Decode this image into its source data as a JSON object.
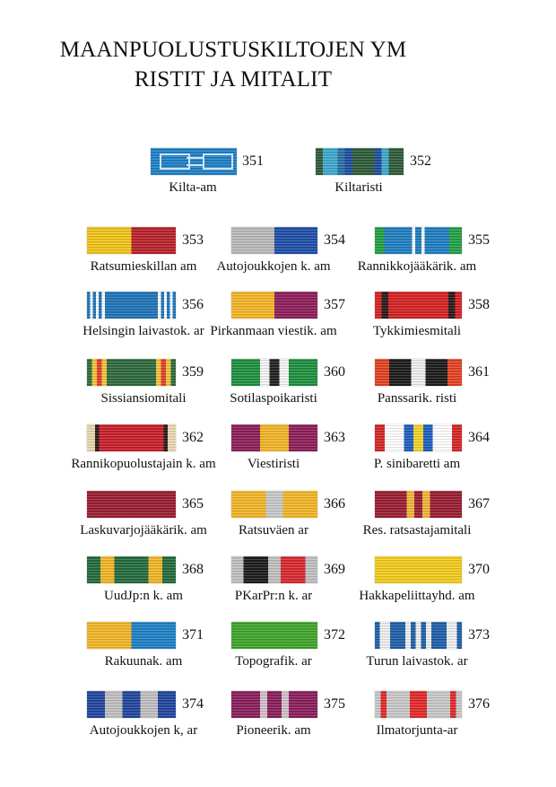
{
  "title_lines": [
    "MAANPUOLUSTUSKILTOJEN YM",
    "RISTIT JA MITALIT"
  ],
  "ribbons": [
    {
      "number": "351",
      "name": "Kilta-am",
      "stripes": [
        [
          "#1f80c6",
          1
        ]
      ],
      "pattern": "white-cross-outline"
    },
    {
      "number": "352",
      "name": "Kiltaristi",
      "stripes": [
        [
          "#2f5c3a",
          1
        ],
        [
          "#3ea8cc",
          2
        ],
        [
          "#2a6fa0",
          1
        ],
        [
          "#1f4d9e",
          1
        ],
        [
          "#2f5c3a",
          3
        ],
        [
          "#1f4d9e",
          1
        ],
        [
          "#3ea8cc",
          1
        ],
        [
          "#2f5c3a",
          2
        ]
      ]
    },
    {
      "number": "353",
      "name": "Ratsumieskillan am",
      "stripes": [
        [
          "#f0c419",
          1
        ],
        [
          "#b8232a",
          1
        ]
      ]
    },
    {
      "number": "354",
      "name": "Autojoukkojen k. am",
      "stripes": [
        [
          "#b9b9b9",
          1
        ],
        [
          "#1f4fa8",
          1
        ]
      ]
    },
    {
      "number": "355",
      "name": "Rannikkojääkärik. am",
      "stripes": [
        [
          "#23a046",
          3
        ],
        [
          "#1f7ec0",
          9
        ],
        [
          "#ffffff",
          1
        ],
        [
          "#1f7ec0",
          2
        ],
        [
          "#ffffff",
          1
        ],
        [
          "#1f7ec0",
          8
        ],
        [
          "#23a046",
          4
        ]
      ]
    },
    {
      "number": "356",
      "name": "Helsingin laivastok. ar",
      "stripes": [
        [
          "#1f74b8",
          1
        ],
        [
          "#ffffff",
          1
        ],
        [
          "#1f74b8",
          1
        ],
        [
          "#ffffff",
          1
        ],
        [
          "#1f74b8",
          1
        ],
        [
          "#ffffff",
          1
        ],
        [
          "#1f74b8",
          18
        ],
        [
          "#ffffff",
          1
        ],
        [
          "#1f74b8",
          1
        ],
        [
          "#ffffff",
          1
        ],
        [
          "#1f74b8",
          1
        ],
        [
          "#ffffff",
          1
        ],
        [
          "#1f74b8",
          1
        ]
      ]
    },
    {
      "number": "357",
      "name": "Pirkanmaan viestik. am",
      "stripes": [
        [
          "#f2b527",
          1
        ],
        [
          "#8e1f5a",
          1
        ]
      ]
    },
    {
      "number": "358",
      "name": "Tykkimiesmitali",
      "stripes": [
        [
          "#d42222",
          2
        ],
        [
          "#2a1a1a",
          2
        ],
        [
          "#d42222",
          18
        ],
        [
          "#2a1a1a",
          2
        ],
        [
          "#d42222",
          2
        ]
      ]
    },
    {
      "number": "359",
      "name": "Sissiansiomitali",
      "stripes": [
        [
          "#2f6a3e",
          1
        ],
        [
          "#f2c23a",
          1
        ],
        [
          "#e0402a",
          1
        ],
        [
          "#f2c23a",
          1
        ],
        [
          "#2f6a3e",
          10
        ],
        [
          "#f2c23a",
          1
        ],
        [
          "#e0402a",
          1
        ],
        [
          "#f2c23a",
          1
        ],
        [
          "#2f6a3e",
          1
        ]
      ]
    },
    {
      "number": "360",
      "name": "Sotilaspoikaristi",
      "stripes": [
        [
          "#1f9040",
          3
        ],
        [
          "#f4f4f4",
          1
        ],
        [
          "#222222",
          1
        ],
        [
          "#f4f4f4",
          1
        ],
        [
          "#1f9040",
          3
        ]
      ]
    },
    {
      "number": "361",
      "name": "Panssarik. risti",
      "stripes": [
        [
          "#e24222",
          2
        ],
        [
          "#1c1c1c",
          3
        ],
        [
          "#eeeeee",
          2
        ],
        [
          "#1c1c1c",
          3
        ],
        [
          "#e24222",
          2
        ]
      ]
    },
    {
      "number": "362",
      "name": "Rannikopuolustajain k. am",
      "stripes": [
        [
          "#e8d7b0",
          2
        ],
        [
          "#2a1a1a",
          1
        ],
        [
          "#c8202a",
          16
        ],
        [
          "#2a1a1a",
          1
        ],
        [
          "#e8d7b0",
          2
        ]
      ]
    },
    {
      "number": "363",
      "name": "Viestiristi",
      "stripes": [
        [
          "#8e1f5a",
          1
        ],
        [
          "#f2b527",
          1
        ],
        [
          "#8e1f5a",
          1
        ]
      ]
    },
    {
      "number": "364",
      "name": "P. sinibaretti am",
      "stripes": [
        [
          "#d42626",
          1
        ],
        [
          "#ffffff",
          2
        ],
        [
          "#1f5fc0",
          1
        ],
        [
          "#f2d22a",
          1
        ],
        [
          "#1f5fc0",
          1
        ],
        [
          "#ffffff",
          2
        ],
        [
          "#d42626",
          1
        ]
      ]
    },
    {
      "number": "365",
      "name": "Laskuvarjojääkärik. am",
      "stripes": [
        [
          "#9b1d33",
          1
        ]
      ]
    },
    {
      "number": "366",
      "name": "Ratsuväen ar",
      "stripes": [
        [
          "#f2b527",
          2
        ],
        [
          "#c8c8c8",
          1
        ],
        [
          "#f2b527",
          2
        ]
      ]
    },
    {
      "number": "367",
      "name": "Res. ratsastajamitali",
      "stripes": [
        [
          "#9b1d33",
          4
        ],
        [
          "#f0b43a",
          1
        ],
        [
          "#9b1d33",
          1
        ],
        [
          "#f0b43a",
          1
        ],
        [
          "#9b1d33",
          4
        ]
      ]
    },
    {
      "number": "368",
      "name": "UudJp:n k. am",
      "stripes": [
        [
          "#236b3e",
          2
        ],
        [
          "#f2b527",
          2
        ],
        [
          "#236b3e",
          5
        ],
        [
          "#f2b527",
          2
        ],
        [
          "#236b3e",
          2
        ]
      ]
    },
    {
      "number": "369",
      "name": "PKarPr:n k. ar",
      "stripes": [
        [
          "#c0c0c0",
          1
        ],
        [
          "#1c1c1c",
          2
        ],
        [
          "#c0c0c0",
          1
        ],
        [
          "#d82a30",
          2
        ],
        [
          "#c0c0c0",
          1
        ]
      ]
    },
    {
      "number": "370",
      "name": "Hakkapeliittayhd. am",
      "stripes": [
        [
          "#f2cc1c",
          1
        ]
      ]
    },
    {
      "number": "371",
      "name": "Rakuunak. am",
      "stripes": [
        [
          "#f2b527",
          1
        ],
        [
          "#1f80c6",
          1
        ]
      ]
    },
    {
      "number": "372",
      "name": "Topografik. ar",
      "stripes": [
        [
          "#3fa52a",
          1
        ]
      ]
    },
    {
      "number": "373",
      "name": "Turun laivastok. ar",
      "stripes": [
        [
          "#1f5fa8",
          1
        ],
        [
          "#eeeeee",
          2
        ],
        [
          "#1f5fa8",
          3
        ],
        [
          "#eeeeee",
          1
        ],
        [
          "#1f5fa8",
          1
        ],
        [
          "#eeeeee",
          1
        ],
        [
          "#1f5fa8",
          1
        ],
        [
          "#eeeeee",
          1
        ],
        [
          "#1f5fa8",
          3
        ],
        [
          "#eeeeee",
          2
        ],
        [
          "#1f5fa8",
          1
        ]
      ]
    },
    {
      "number": "374",
      "name": "Autojoukkojen k, ar",
      "stripes": [
        [
          "#22469e",
          2
        ],
        [
          "#c0c0c0",
          2
        ],
        [
          "#22469e",
          2
        ],
        [
          "#c0c0c0",
          2
        ],
        [
          "#22469e",
          2
        ]
      ]
    },
    {
      "number": "375",
      "name": "Pioneerik. am",
      "stripes": [
        [
          "#8a1f5c",
          4
        ],
        [
          "#d0c0c8",
          1
        ],
        [
          "#8a1f5c",
          2
        ],
        [
          "#d0c0c8",
          1
        ],
        [
          "#8a1f5c",
          4
        ]
      ]
    },
    {
      "number": "376",
      "name": "Ilmatorjunta-ar",
      "stripes": [
        [
          "#c8c8c8",
          1
        ],
        [
          "#e22a2a",
          1
        ],
        [
          "#c8c8c8",
          4
        ],
        [
          "#e22a2a",
          3
        ],
        [
          "#c8c8c8",
          4
        ],
        [
          "#e22a2a",
          1
        ],
        [
          "#c8c8c8",
          1
        ]
      ]
    }
  ]
}
